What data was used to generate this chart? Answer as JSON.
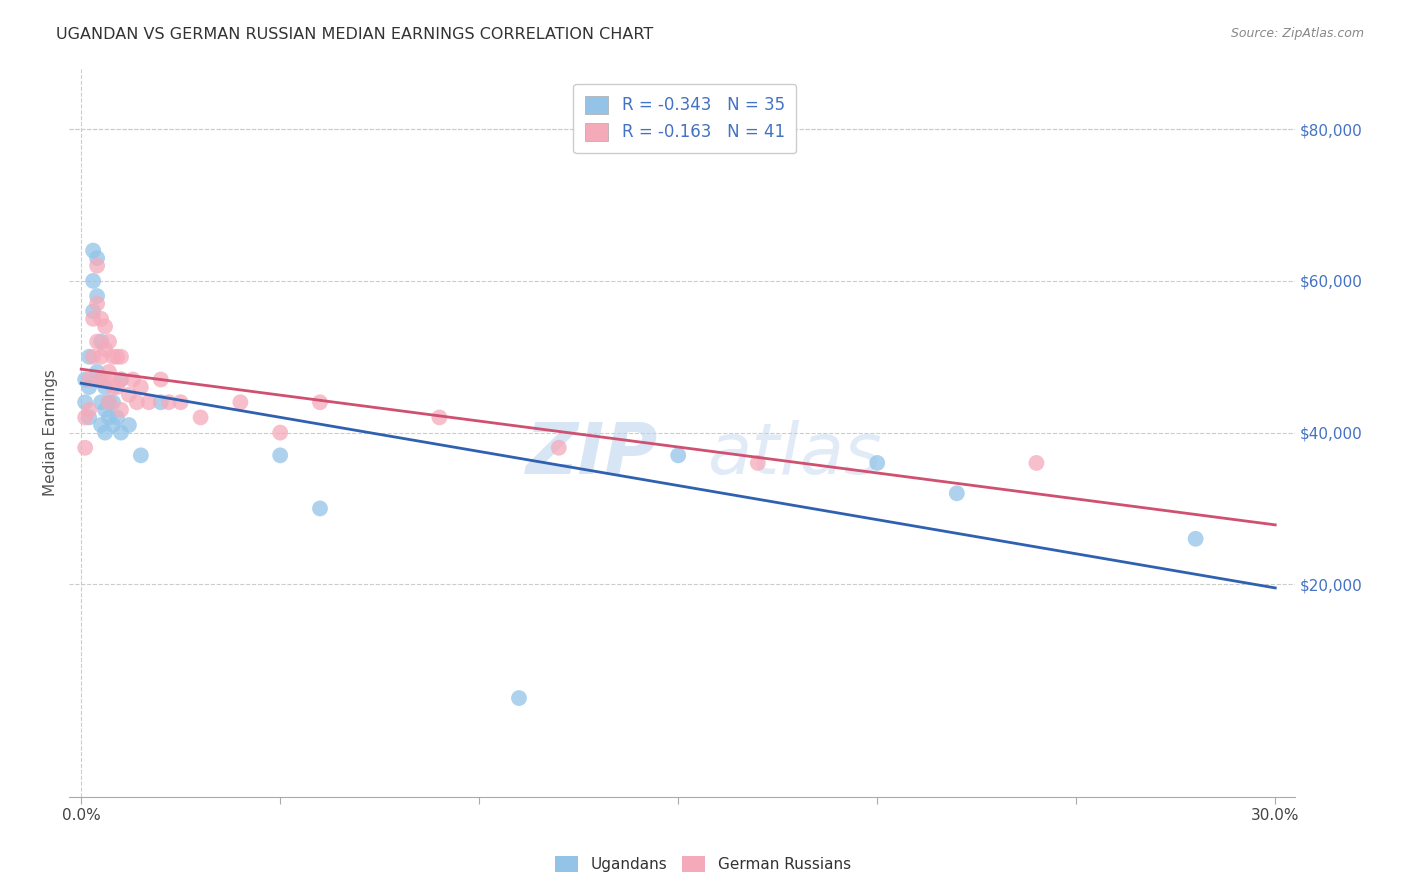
{
  "title": "UGANDAN VS GERMAN RUSSIAN MEDIAN EARNINGS CORRELATION CHART",
  "source": "Source: ZipAtlas.com",
  "ylabel_label": "Median Earnings",
  "ugandan_R": -0.343,
  "ugandan_N": 35,
  "german_russian_R": -0.163,
  "german_russian_N": 41,
  "legend_label_1": "Ugandans",
  "legend_label_2": "German Russians",
  "ugandan_color": "#93C4E8",
  "german_russian_color": "#F5AABA",
  "ugandan_line_color": "#3060B0",
  "german_russian_line_color": "#D05070",
  "watermark_1": "ZIP",
  "watermark_2": "atlas",
  "ugandan_x": [
    0.001,
    0.001,
    0.002,
    0.002,
    0.002,
    0.003,
    0.003,
    0.003,
    0.004,
    0.004,
    0.004,
    0.005,
    0.005,
    0.005,
    0.005,
    0.006,
    0.006,
    0.006,
    0.007,
    0.007,
    0.008,
    0.008,
    0.009,
    0.01,
    0.01,
    0.012,
    0.015,
    0.02,
    0.05,
    0.06,
    0.15,
    0.2,
    0.22,
    0.28,
    0.11
  ],
  "ugandan_y": [
    47000,
    44000,
    50000,
    46000,
    42000,
    64000,
    60000,
    56000,
    63000,
    58000,
    48000,
    52000,
    47000,
    44000,
    41000,
    46000,
    43000,
    40000,
    44000,
    42000,
    44000,
    41000,
    42000,
    47000,
    40000,
    41000,
    37000,
    44000,
    37000,
    30000,
    37000,
    36000,
    32000,
    26000,
    5000
  ],
  "german_russian_x": [
    0.001,
    0.001,
    0.002,
    0.002,
    0.003,
    0.003,
    0.004,
    0.004,
    0.004,
    0.005,
    0.005,
    0.005,
    0.006,
    0.006,
    0.006,
    0.007,
    0.007,
    0.007,
    0.008,
    0.008,
    0.009,
    0.009,
    0.01,
    0.01,
    0.01,
    0.012,
    0.013,
    0.014,
    0.015,
    0.017,
    0.02,
    0.022,
    0.025,
    0.03,
    0.04,
    0.05,
    0.06,
    0.09,
    0.12,
    0.17,
    0.24
  ],
  "german_russian_y": [
    42000,
    38000,
    47000,
    43000,
    55000,
    50000,
    62000,
    57000,
    52000,
    55000,
    50000,
    47000,
    54000,
    51000,
    47000,
    52000,
    48000,
    44000,
    50000,
    46000,
    50000,
    46000,
    50000,
    47000,
    43000,
    45000,
    47000,
    44000,
    46000,
    44000,
    47000,
    44000,
    44000,
    42000,
    44000,
    40000,
    44000,
    42000,
    38000,
    36000,
    36000
  ],
  "xlim": [
    -0.003,
    0.305
  ],
  "ylim": [
    -8000,
    88000
  ],
  "x_ticks": [
    0.0,
    0.05,
    0.1,
    0.15,
    0.2,
    0.25,
    0.3
  ],
  "x_tick_show": [
    "0.0%",
    "",
    "",
    "",
    "",
    "",
    "30.0%"
  ],
  "y_ticks_right": [
    20000,
    40000,
    60000,
    80000
  ],
  "y_tick_labels_right": [
    "$20,000",
    "$40,000",
    "$60,000",
    "$80,000"
  ],
  "right_tick_color": "#4472C4",
  "grid_color": "#CCCCCC",
  "bottom_spine_color": "#AAAAAA"
}
